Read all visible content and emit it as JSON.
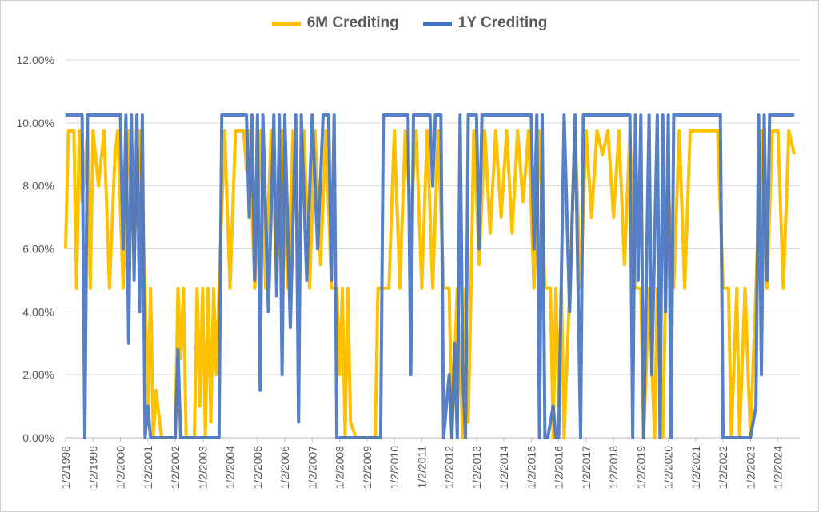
{
  "chart_data": {
    "type": "line",
    "title": "",
    "xlabel": "",
    "ylabel": "",
    "legend_position": "top",
    "grid": "horizontal",
    "ylim": [
      0,
      0.12
    ],
    "y_ticks": [
      "0.00%",
      "2.00%",
      "4.00%",
      "6.00%",
      "8.00%",
      "10.00%",
      "12.00%"
    ],
    "x_ticks": [
      "1/2/1998",
      "1/2/1999",
      "1/2/2000",
      "1/2/2001",
      "1/2/2002",
      "1/2/2003",
      "1/2/2004",
      "1/2/2005",
      "1/2/2006",
      "1/2/2007",
      "1/2/2008",
      "1/2/2009",
      "1/2/2010",
      "1/2/2011",
      "1/2/2012",
      "1/2/2013",
      "1/2/2014",
      "1/2/2015",
      "1/2/2016",
      "1/2/2017",
      "1/2/2018",
      "1/2/2019",
      "1/2/2020",
      "1/2/2021",
      "1/2/2022",
      "1/2/2023",
      "1/2/2024"
    ],
    "series": [
      {
        "name": "6M Crediting",
        "color": "#FFC000",
        "points": [
          [
            "1998.0",
            0.06
          ],
          [
            "1998.1",
            0.0975
          ],
          [
            "1998.3",
            0.0975
          ],
          [
            "1998.4",
            0.0475
          ],
          [
            "1998.5",
            0.0975
          ],
          [
            "1998.6",
            0.075
          ],
          [
            "1998.8",
            0.0975
          ],
          [
            "1998.9",
            0.0475
          ],
          [
            "1999.0",
            0.0975
          ],
          [
            "1999.2",
            0.08
          ],
          [
            "1999.4",
            0.0975
          ],
          [
            "1999.6",
            0.0475
          ],
          [
            "1999.8",
            0.09
          ],
          [
            "1999.9",
            0.0975
          ],
          [
            "2000.1",
            0.0475
          ],
          [
            "2000.3",
            0.0975
          ],
          [
            "2000.5",
            0.06
          ],
          [
            "2000.7",
            0.0975
          ],
          [
            "2000.9",
            0.0475
          ],
          [
            "2001.0",
            0.01
          ],
          [
            "2001.1",
            0.0475
          ],
          [
            "2001.2",
            0.0
          ],
          [
            "2001.3",
            0.015
          ],
          [
            "2001.5",
            0.0
          ],
          [
            "2002.0",
            0.0
          ],
          [
            "2002.1",
            0.0475
          ],
          [
            "2002.2",
            0.025
          ],
          [
            "2002.3",
            0.0475
          ],
          [
            "2002.4",
            0.0
          ],
          [
            "2002.7",
            0.0
          ],
          [
            "2002.8",
            0.0475
          ],
          [
            "2002.9",
            0.01
          ],
          [
            "2003.0",
            0.0475
          ],
          [
            "2003.1",
            0.0
          ],
          [
            "2003.2",
            0.0475
          ],
          [
            "2003.3",
            0.005
          ],
          [
            "2003.4",
            0.0475
          ],
          [
            "2003.5",
            0.02
          ],
          [
            "2003.6",
            0.0475
          ],
          [
            "2003.8",
            0.0975
          ],
          [
            "2004.0",
            0.0475
          ],
          [
            "2004.2",
            0.0975
          ],
          [
            "2004.5",
            0.0975
          ],
          [
            "2004.6",
            0.085
          ],
          [
            "2004.7",
            0.0975
          ],
          [
            "2004.9",
            0.0475
          ],
          [
            "2005.1",
            0.0975
          ],
          [
            "2005.3",
            0.0475
          ],
          [
            "2005.5",
            0.0975
          ],
          [
            "2005.7",
            0.05
          ],
          [
            "2005.9",
            0.0975
          ],
          [
            "2006.1",
            0.0475
          ],
          [
            "2006.3",
            0.0975
          ],
          [
            "2006.5",
            0.06
          ],
          [
            "2006.7",
            0.0975
          ],
          [
            "2006.9",
            0.0475
          ],
          [
            "2007.1",
            0.0975
          ],
          [
            "2007.3",
            0.055
          ],
          [
            "2007.5",
            0.0975
          ],
          [
            "2007.7",
            0.0475
          ],
          [
            "2007.9",
            0.0475
          ],
          [
            "2008.0",
            0.02
          ],
          [
            "2008.1",
            0.0475
          ],
          [
            "2008.2",
            0.0
          ],
          [
            "2008.3",
            0.0475
          ],
          [
            "2008.4",
            0.005
          ],
          [
            "2008.6",
            0.0
          ],
          [
            "2009.0",
            0.0
          ],
          [
            "2009.3",
            0.0
          ],
          [
            "2009.4",
            0.0475
          ],
          [
            "2009.6",
            0.0475
          ],
          [
            "2009.8",
            0.0475
          ],
          [
            "2010.0",
            0.0975
          ],
          [
            "2010.2",
            0.0475
          ],
          [
            "2010.4",
            0.0975
          ],
          [
            "2010.6",
            0.07
          ],
          [
            "2010.8",
            0.0975
          ],
          [
            "2011.0",
            0.0475
          ],
          [
            "2011.2",
            0.0975
          ],
          [
            "2011.4",
            0.0475
          ],
          [
            "2011.6",
            0.0975
          ],
          [
            "2011.8",
            0.0475
          ],
          [
            "2012.0",
            0.0475
          ],
          [
            "2012.1",
            0.0
          ],
          [
            "2012.3",
            0.0475
          ],
          [
            "2012.5",
            0.0
          ],
          [
            "2012.6",
            0.0475
          ],
          [
            "2012.7",
            0.005
          ],
          [
            "2012.8",
            0.0475
          ],
          [
            "2012.9",
            0.0975
          ],
          [
            "2013.1",
            0.055
          ],
          [
            "2013.3",
            0.0975
          ],
          [
            "2013.5",
            0.065
          ],
          [
            "2013.7",
            0.0975
          ],
          [
            "2013.9",
            0.07
          ],
          [
            "2014.1",
            0.0975
          ],
          [
            "2014.3",
            0.065
          ],
          [
            "2014.5",
            0.0975
          ],
          [
            "2014.7",
            0.075
          ],
          [
            "2014.9",
            0.0975
          ],
          [
            "2015.1",
            0.0475
          ],
          [
            "2015.3",
            0.0975
          ],
          [
            "2015.5",
            0.0475
          ],
          [
            "2015.7",
            0.0475
          ],
          [
            "2015.8",
            0.0
          ],
          [
            "2015.9",
            0.0475
          ],
          [
            "2016.0",
            0.01
          ],
          [
            "2016.1",
            0.0475
          ],
          [
            "2016.2",
            0.0
          ],
          [
            "2016.4",
            0.0475
          ],
          [
            "2016.6",
            0.0975
          ],
          [
            "2016.8",
            0.0475
          ],
          [
            "2017.0",
            0.0975
          ],
          [
            "2017.2",
            0.07
          ],
          [
            "2017.4",
            0.0975
          ],
          [
            "2017.6",
            0.09
          ],
          [
            "2017.8",
            0.0975
          ],
          [
            "2018.0",
            0.07
          ],
          [
            "2018.2",
            0.0975
          ],
          [
            "2018.4",
            0.055
          ],
          [
            "2018.6",
            0.0975
          ],
          [
            "2018.8",
            0.0475
          ],
          [
            "2019.0",
            0.0475
          ],
          [
            "2019.1",
            0.0
          ],
          [
            "2019.3",
            0.0475
          ],
          [
            "2019.5",
            0.0
          ],
          [
            "2019.6",
            0.0475
          ],
          [
            "2019.8",
            0.0
          ],
          [
            "2019.9",
            0.0475
          ],
          [
            "2020.0",
            0.08
          ],
          [
            "2020.2",
            0.0475
          ],
          [
            "2020.4",
            0.0975
          ],
          [
            "2020.6",
            0.0475
          ],
          [
            "2020.8",
            0.0975
          ],
          [
            "2021.0",
            0.0975
          ],
          [
            "2021.5",
            0.0975
          ],
          [
            "2021.8",
            0.0975
          ],
          [
            "2022.0",
            0.0475
          ],
          [
            "2022.2",
            0.0475
          ],
          [
            "2022.3",
            0.0
          ],
          [
            "2022.5",
            0.0475
          ],
          [
            "2022.6",
            0.0
          ],
          [
            "2022.8",
            0.0475
          ],
          [
            "2023.0",
            0.0
          ],
          [
            "2023.2",
            0.0475
          ],
          [
            "2023.4",
            0.0975
          ],
          [
            "2023.6",
            0.0475
          ],
          [
            "2023.8",
            0.0975
          ],
          [
            "2024.0",
            0.0975
          ],
          [
            "2024.2",
            0.0475
          ],
          [
            "2024.4",
            0.0975
          ],
          [
            "2024.6",
            0.09
          ]
        ]
      },
      {
        "name": "1Y Crediting",
        "color": "#4472C4",
        "points": [
          [
            "1998.0",
            0.1025
          ],
          [
            "1998.6",
            0.1025
          ],
          [
            "1998.7",
            0.0
          ],
          [
            "1998.8",
            0.1025
          ],
          [
            "2000.0",
            0.1025
          ],
          [
            "2000.1",
            0.06
          ],
          [
            "2000.2",
            0.1025
          ],
          [
            "2000.3",
            0.03
          ],
          [
            "2000.4",
            0.1025
          ],
          [
            "2000.5",
            0.05
          ],
          [
            "2000.6",
            0.1025
          ],
          [
            "2000.7",
            0.04
          ],
          [
            "2000.8",
            0.1025
          ],
          [
            "2000.9",
            0.0
          ],
          [
            "2001.0",
            0.01
          ],
          [
            "2001.1",
            0.0
          ],
          [
            "2002.0",
            0.0
          ],
          [
            "2002.1",
            0.028
          ],
          [
            "2002.2",
            0.0
          ],
          [
            "2003.0",
            0.0
          ],
          [
            "2003.6",
            0.0
          ],
          [
            "2003.7",
            0.1025
          ],
          [
            "2004.6",
            0.1025
          ],
          [
            "2004.7",
            0.07
          ],
          [
            "2004.8",
            0.1025
          ],
          [
            "2004.9",
            0.05
          ],
          [
            "2005.0",
            0.1025
          ],
          [
            "2005.1",
            0.015
          ],
          [
            "2005.2",
            0.1025
          ],
          [
            "2005.4",
            0.04
          ],
          [
            "2005.6",
            0.1025
          ],
          [
            "2005.7",
            0.045
          ],
          [
            "2005.8",
            0.1025
          ],
          [
            "2005.9",
            0.02
          ],
          [
            "2006.0",
            0.1025
          ],
          [
            "2006.2",
            0.035
          ],
          [
            "2006.4",
            0.1025
          ],
          [
            "2006.5",
            0.005
          ],
          [
            "2006.6",
            0.1025
          ],
          [
            "2006.8",
            0.05
          ],
          [
            "2007.0",
            0.1025
          ],
          [
            "2007.2",
            0.06
          ],
          [
            "2007.4",
            0.1025
          ],
          [
            "2007.6",
            0.1025
          ],
          [
            "2007.7",
            0.05
          ],
          [
            "2007.8",
            0.1025
          ],
          [
            "2007.9",
            0.0
          ],
          [
            "2008.0",
            0.0
          ],
          [
            "2009.5",
            0.0
          ],
          [
            "2009.6",
            0.1025
          ],
          [
            "2010.5",
            0.1025
          ],
          [
            "2010.6",
            0.02
          ],
          [
            "2010.7",
            0.1025
          ],
          [
            "2011.3",
            0.1025
          ],
          [
            "2011.4",
            0.08
          ],
          [
            "2011.5",
            0.1025
          ],
          [
            "2011.7",
            0.1025
          ],
          [
            "2011.8",
            0.0
          ],
          [
            "2012.0",
            0.02
          ],
          [
            "2012.1",
            0.0
          ],
          [
            "2012.2",
            0.03
          ],
          [
            "2012.3",
            0.0
          ],
          [
            "2012.4",
            0.1025
          ],
          [
            "2012.5",
            0.02
          ],
          [
            "2012.6",
            0.0
          ],
          [
            "2012.7",
            0.1025
          ],
          [
            "2013.0",
            0.1025
          ],
          [
            "2013.1",
            0.06
          ],
          [
            "2013.2",
            0.1025
          ],
          [
            "2014.0",
            0.1025
          ],
          [
            "2015.0",
            0.1025
          ],
          [
            "2015.1",
            0.06
          ],
          [
            "2015.2",
            0.1025
          ],
          [
            "2015.3",
            0.0
          ],
          [
            "2015.4",
            0.1025
          ],
          [
            "2015.5",
            0.0
          ],
          [
            "2015.6",
            0.0
          ],
          [
            "2015.8",
            0.01
          ],
          [
            "2015.9",
            0.0
          ],
          [
            "2016.0",
            0.0
          ],
          [
            "2016.2",
            0.1025
          ],
          [
            "2016.4",
            0.04
          ],
          [
            "2016.6",
            0.1025
          ],
          [
            "2016.8",
            0.0
          ],
          [
            "2016.9",
            0.1025
          ],
          [
            "2018.0",
            0.1025
          ],
          [
            "2018.4",
            0.1025
          ],
          [
            "2018.6",
            0.1025
          ],
          [
            "2018.7",
            0.0
          ],
          [
            "2018.8",
            0.1025
          ],
          [
            "2018.9",
            0.05
          ],
          [
            "2019.0",
            0.1025
          ],
          [
            "2019.1",
            0.0
          ],
          [
            "2019.3",
            0.1025
          ],
          [
            "2019.4",
            0.02
          ],
          [
            "2019.6",
            0.1025
          ],
          [
            "2019.7",
            0.0
          ],
          [
            "2019.8",
            0.1025
          ],
          [
            "2019.9",
            0.04
          ],
          [
            "2020.0",
            0.1025
          ],
          [
            "2020.1",
            0.0
          ],
          [
            "2020.2",
            0.1025
          ],
          [
            "2021.0",
            0.1025
          ],
          [
            "2021.9",
            0.1025
          ],
          [
            "2022.0",
            0.0
          ],
          [
            "2023.0",
            0.0
          ],
          [
            "2023.2",
            0.01
          ],
          [
            "2023.3",
            0.1025
          ],
          [
            "2023.4",
            0.02
          ],
          [
            "2023.5",
            0.1025
          ],
          [
            "2023.6",
            0.05
          ],
          [
            "2023.7",
            0.1025
          ],
          [
            "2024.0",
            0.1025
          ],
          [
            "2024.6",
            0.1025
          ]
        ]
      }
    ]
  }
}
